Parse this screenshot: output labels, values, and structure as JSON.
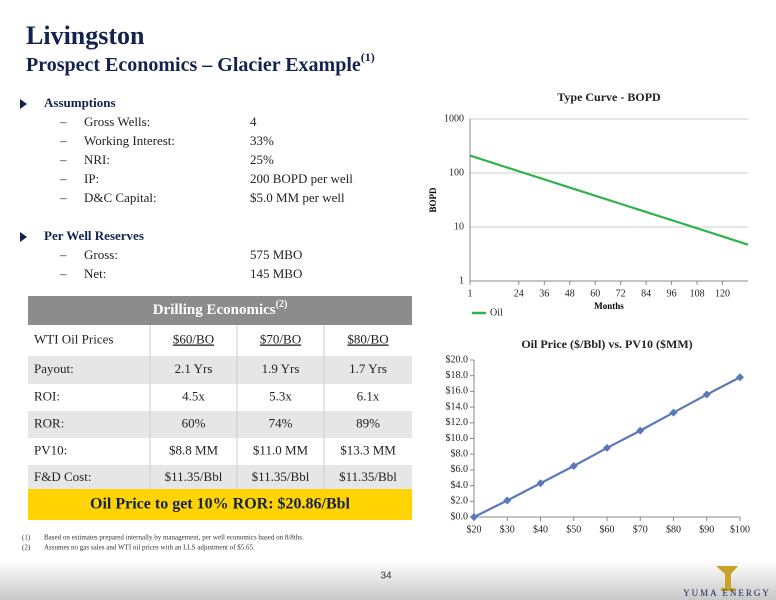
{
  "header": {
    "title": "Livingston",
    "subtitle": "Prospect Economics – Glacier Example",
    "subtitle_note": "(1)"
  },
  "assumptions": {
    "heading": "Assumptions",
    "items": [
      [
        "Gross Wells:",
        "4"
      ],
      [
        "Working Interest:",
        "33%"
      ],
      [
        "NRI:",
        "25%"
      ],
      [
        "IP:",
        "200 BOPD per well"
      ],
      [
        "D&C Capital:",
        "$5.0 MM per well"
      ]
    ]
  },
  "reserves": {
    "heading": "Per Well Reserves",
    "items": [
      [
        "Gross:",
        "575 MBO"
      ],
      [
        "Net:",
        "145 MBO"
      ]
    ]
  },
  "table": {
    "title": "Drilling Economics",
    "title_note": "(2)",
    "header": [
      "WTI Oil Prices",
      "$60/BO",
      "$70/BO",
      "$80/BO"
    ],
    "rows": [
      [
        "Payout:",
        "2.1 Yrs",
        "1.9 Yrs",
        "1.7 Yrs"
      ],
      [
        "ROI:",
        "4.5x",
        "5.3x",
        "6.1x"
      ],
      [
        "ROR:",
        "60%",
        "74%",
        "89%"
      ],
      [
        "PV10:",
        "$8.8 MM",
        "$11.0 MM",
        "$13.3 MM"
      ],
      [
        "F&D Cost:",
        "$11.35/Bbl",
        "$11.35/Bbl",
        "$11.35/Bbl"
      ]
    ]
  },
  "banner": "Oil Price to get 10% ROR: $20.86/Bbl",
  "footnotes": [
    [
      "(1)",
      "Based on estimates prepared internally by management, per well economics based on 8/8ths."
    ],
    [
      "(2)",
      "Assumes no gas sales and WTI oil prices with an LLS adjustment of $5.65."
    ]
  ],
  "page_number": "34",
  "logo": "YUMA ENERGY",
  "chart_data": [
    {
      "type": "line",
      "title": "Type Curve - BOPD",
      "xlabel": "Months",
      "ylabel": "BOPD",
      "log": true,
      "grid": true,
      "legend": "bottom",
      "x": [
        1,
        24,
        48,
        72,
        96,
        120,
        132
      ],
      "series": [
        {
          "name": "Oil",
          "color": "#2db34a",
          "values": [
            210,
            107.8,
            53.7,
            26.8,
            13.4,
            6.7,
            4.7
          ]
        }
      ],
      "xlim": [
        1,
        132
      ],
      "xticks": [
        1,
        24,
        36,
        48,
        60,
        72,
        84,
        96,
        108,
        120
      ],
      "ylim": [
        1,
        1000
      ],
      "yticks": [
        1,
        10,
        100,
        1000
      ]
    },
    {
      "type": "line",
      "title": "Oil Price ($/Bbl) vs. PV10 ($MM)",
      "grid": false,
      "marker": "diamond",
      "x": [
        20,
        30,
        40,
        50,
        60,
        70,
        80,
        90,
        100
      ],
      "color": "#5b79b8",
      "values": [
        0,
        2.1,
        4.3,
        6.5,
        8.8,
        11.0,
        13.3,
        15.6,
        17.8
      ],
      "xlim": [
        20,
        100
      ],
      "xticks": [
        {
          "value": 20,
          "label": "$20"
        },
        {
          "value": 30,
          "label": "$30"
        },
        {
          "value": 40,
          "label": "$40"
        },
        {
          "value": 50,
          "label": "$50"
        },
        {
          "value": 60,
          "label": "$60"
        },
        {
          "value": 70,
          "label": "$70"
        },
        {
          "value": 80,
          "label": "$80"
        },
        {
          "value": 90,
          "label": "$90"
        },
        {
          "value": 100,
          "label": "$100"
        }
      ],
      "ylim": [
        0,
        20
      ],
      "yticks": [
        {
          "value": 0,
          "label": "$0.0"
        },
        {
          "value": 2,
          "label": "$2.0"
        },
        {
          "value": 4,
          "label": "$4.0"
        },
        {
          "value": 6,
          "label": "$6.0"
        },
        {
          "value": 8,
          "label": "$8.0"
        },
        {
          "value": 10,
          "label": "$10.0"
        },
        {
          "value": 12,
          "label": "$12.0"
        },
        {
          "value": 14,
          "label": "$14.0"
        },
        {
          "value": 16,
          "label": "$16.0"
        },
        {
          "value": 18,
          "label": "$18.0"
        },
        {
          "value": 20,
          "label": "$20.0"
        }
      ]
    }
  ]
}
